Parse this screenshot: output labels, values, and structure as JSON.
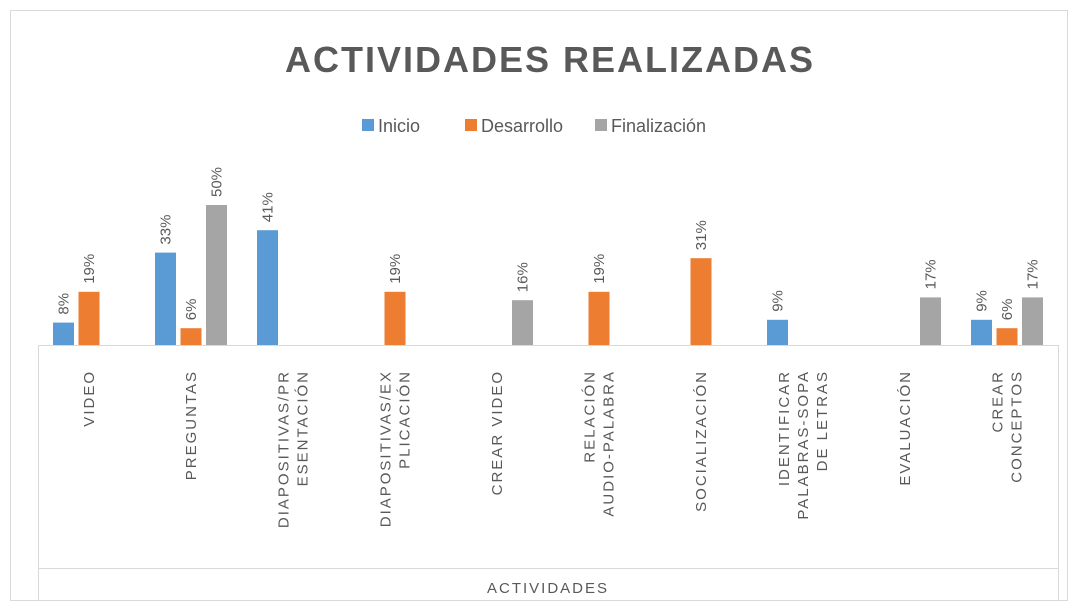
{
  "chart_data": {
    "type": "bar",
    "title": "ACTIVIDADES REALIZADAS",
    "x_label": "ACTIVIDADES",
    "categories": [
      "VIDEO",
      "PREGUNTAS",
      "DIAPOSITIVAS/PR\nESENTACIÓN",
      "DIAPOSITIVAS/EX\nPLICACIÓN",
      "CREAR VIDEO",
      "RELACIÓN\nAUDIO-PALABRA",
      "SOCIALIZACIÓN",
      "IDENTIFICAR\nPALABRAS-SOPA\nDE LETRAS",
      "EVALUACIÓN",
      "CREAR\nCONCEPTOS"
    ],
    "series": [
      {
        "name": "Inicio",
        "color": "#5b9bd5",
        "values": [
          8,
          33,
          41,
          null,
          null,
          null,
          null,
          9,
          null,
          9
        ],
        "value_labels": [
          "8%",
          "33%",
          "41%",
          null,
          null,
          null,
          null,
          "9%",
          null,
          "9%"
        ]
      },
      {
        "name": "Desarrollo",
        "color": "#ed7d31",
        "values": [
          19,
          6,
          null,
          19,
          null,
          19,
          31,
          null,
          null,
          6
        ],
        "value_labels": [
          "19%",
          "6%",
          null,
          "19%",
          null,
          "19%",
          "31%",
          null,
          null,
          "6%"
        ]
      },
      {
        "name": "Finalización",
        "color": "#a5a5a5",
        "values": [
          null,
          50,
          null,
          null,
          16,
          null,
          null,
          null,
          17,
          17
        ],
        "value_labels": [
          null,
          "50%",
          null,
          null,
          "16%",
          null,
          null,
          null,
          "17%",
          "17%"
        ]
      }
    ]
  }
}
